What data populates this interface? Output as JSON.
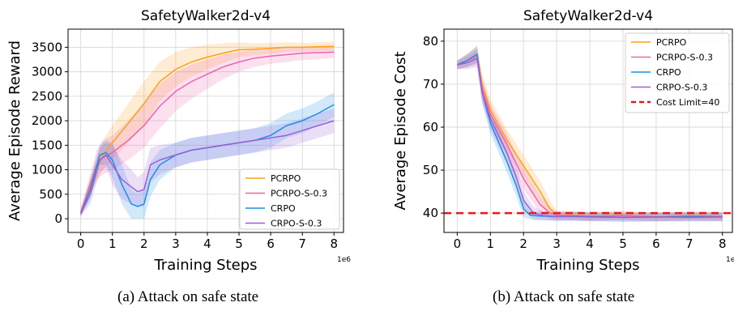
{
  "captions": [
    "(a) Attack on safe state",
    "(b) Attack on safe state"
  ],
  "chart_data": [
    {
      "type": "line",
      "title": "SafetyWalker2d-v4",
      "xlabel": "Training Steps",
      "ylabel": "Average Episode Reward",
      "x_offset_label": "1e6",
      "xlim": [
        -0.4,
        8.3
      ],
      "ylim": [
        -280,
        3870
      ],
      "xticks": [
        0,
        1,
        2,
        3,
        4,
        5,
        6,
        7,
        8
      ],
      "yticks": [
        0,
        500,
        1000,
        1500,
        2000,
        2500,
        3000,
        3500
      ],
      "grid": true,
      "legend_position": "lower-right",
      "series": [
        {
          "name": "PCRPO",
          "color": "#ff9f1c",
          "x": [
            0,
            0.5,
            0.7,
            1,
            1.5,
            2,
            2.5,
            3,
            3.5,
            4,
            4.5,
            5,
            5.5,
            6,
            6.5,
            7,
            7.5,
            8
          ],
          "y": [
            150,
            1000,
            1300,
            1550,
            1950,
            2350,
            2800,
            3050,
            3200,
            3300,
            3380,
            3450,
            3460,
            3480,
            3500,
            3500,
            3510,
            3520
          ],
          "band": [
            80,
            250,
            300,
            350,
            400,
            450,
            400,
            350,
            300,
            250,
            200,
            150,
            120,
            110,
            100,
            90,
            90,
            90
          ]
        },
        {
          "name": "PCRPO-S-0.3",
          "color": "#f062b0",
          "x": [
            0,
            0.5,
            0.7,
            1,
            1.5,
            2,
            2.5,
            3,
            3.5,
            4,
            4.5,
            5,
            5.5,
            6,
            6.5,
            7,
            7.5,
            8
          ],
          "y": [
            120,
            1100,
            1250,
            1350,
            1600,
            1900,
            2300,
            2600,
            2800,
            2950,
            3100,
            3200,
            3280,
            3320,
            3350,
            3380,
            3390,
            3400
          ],
          "band": [
            80,
            300,
            350,
            350,
            400,
            450,
            450,
            400,
            350,
            300,
            250,
            200,
            180,
            160,
            150,
            140,
            130,
            120
          ]
        },
        {
          "name": "CRPO",
          "color": "#1f8fe6",
          "x": [
            0,
            0.3,
            0.6,
            0.8,
            1,
            1.3,
            1.6,
            1.8,
            2,
            2.2,
            2.5,
            3,
            3.5,
            4,
            4.5,
            5,
            5.5,
            6,
            6.5,
            7,
            7.5,
            8
          ],
          "y": [
            100,
            600,
            1300,
            1350,
            1200,
            700,
            300,
            250,
            300,
            800,
            1100,
            1300,
            1400,
            1450,
            1500,
            1550,
            1600,
            1700,
            1900,
            2000,
            2150,
            2330
          ],
          "band": [
            60,
            200,
            200,
            250,
            350,
            400,
            300,
            250,
            300,
            350,
            300,
            250,
            250,
            250,
            250,
            250,
            250,
            250,
            250,
            250,
            250,
            250
          ]
        },
        {
          "name": "CRPO-S-0.3",
          "color": "#9a5fd6",
          "x": [
            0,
            0.3,
            0.6,
            0.8,
            1,
            1.3,
            1.6,
            1.8,
            2,
            2.2,
            2.5,
            3,
            3.5,
            4,
            4.5,
            5,
            5.5,
            6,
            6.5,
            7,
            7.5,
            8
          ],
          "y": [
            100,
            500,
            1200,
            1300,
            1100,
            800,
            650,
            550,
            600,
            1100,
            1200,
            1300,
            1400,
            1450,
            1500,
            1550,
            1600,
            1650,
            1700,
            1800,
            1900,
            2000
          ],
          "band": [
            60,
            200,
            250,
            250,
            400,
            400,
            350,
            300,
            350,
            350,
            300,
            250,
            250,
            250,
            250,
            250,
            250,
            250,
            250,
            250,
            250,
            250
          ]
        }
      ]
    },
    {
      "type": "line",
      "title": "SafetyWalker2d-v4",
      "xlabel": "Training Steps",
      "ylabel": "Average Episode Cost",
      "x_offset_label": "1e6",
      "xlim": [
        -0.4,
        8.3
      ],
      "ylim": [
        35.5,
        82.8
      ],
      "xticks": [
        0,
        1,
        2,
        3,
        4,
        5,
        6,
        7,
        8
      ],
      "yticks": [
        40,
        50,
        60,
        70,
        80
      ],
      "grid": true,
      "legend_position": "top-right",
      "series": [
        {
          "name": "PCRPO",
          "color": "#ff9f1c",
          "x": [
            0,
            0.3,
            0.6,
            0.75,
            1,
            1.5,
            2,
            2.5,
            2.8,
            3,
            3.5,
            4,
            5,
            6,
            7,
            8
          ],
          "y": [
            74.5,
            75.5,
            77,
            70,
            64,
            57,
            51,
            45,
            41,
            39.5,
            39.5,
            39.3,
            39.5,
            39.2,
            39.4,
            39.3
          ],
          "band": [
            1,
            1.5,
            2,
            2.5,
            2.5,
            2.5,
            2.5,
            2.5,
            2,
            1,
            1,
            1,
            1,
            1,
            1,
            1
          ]
        },
        {
          "name": "PCRPO-S-0.3",
          "color": "#f062b0",
          "x": [
            0,
            0.3,
            0.6,
            0.75,
            1,
            1.5,
            2,
            2.5,
            2.8,
            3,
            3.5,
            4,
            5,
            6,
            7,
            8
          ],
          "y": [
            74.5,
            75.5,
            76.5,
            69,
            63,
            56,
            48,
            42,
            40,
            39.5,
            39.3,
            39.2,
            39.4,
            39.1,
            39.3,
            39.2
          ],
          "band": [
            1,
            1.5,
            2,
            2.5,
            2.5,
            2.5,
            2.5,
            2,
            1.5,
            1,
            1,
            1,
            1,
            1,
            1,
            1
          ]
        },
        {
          "name": "CRPO",
          "color": "#1f8fe6",
          "x": [
            0,
            0.3,
            0.6,
            0.75,
            1,
            1.5,
            1.8,
            2,
            2.2,
            2.5,
            3,
            3.5,
            4,
            5,
            6,
            7,
            8
          ],
          "y": [
            74.5,
            75.5,
            77,
            68,
            61,
            52,
            46,
            41,
            39.5,
            39.3,
            39.2,
            39.3,
            39.2,
            39,
            39.1,
            39.2,
            39.1
          ],
          "band": [
            1,
            1.5,
            2,
            2.5,
            2.5,
            2.5,
            2.5,
            2,
            1,
            1,
            1,
            1,
            1,
            1,
            1,
            1,
            1
          ]
        },
        {
          "name": "CRPO-S-0.3",
          "color": "#9a5fd6",
          "x": [
            0,
            0.3,
            0.6,
            0.75,
            1,
            1.5,
            1.8,
            2,
            2.3,
            2.6,
            3,
            3.5,
            4,
            5,
            6,
            7,
            8
          ],
          "y": [
            74.5,
            75,
            76,
            68,
            62,
            54,
            48,
            43,
            40,
            39.4,
            39.2,
            39.2,
            39.1,
            39,
            39.1,
            39,
            39.1
          ],
          "band": [
            1,
            1.5,
            2,
            2.5,
            2.5,
            2.5,
            2.5,
            2,
            1.5,
            1,
            1,
            1,
            1,
            1,
            1,
            1,
            1
          ]
        }
      ],
      "reference_line": {
        "name": "Cost Limit=40",
        "y": 40,
        "color": "#e8181b",
        "style": "dashed"
      }
    }
  ]
}
